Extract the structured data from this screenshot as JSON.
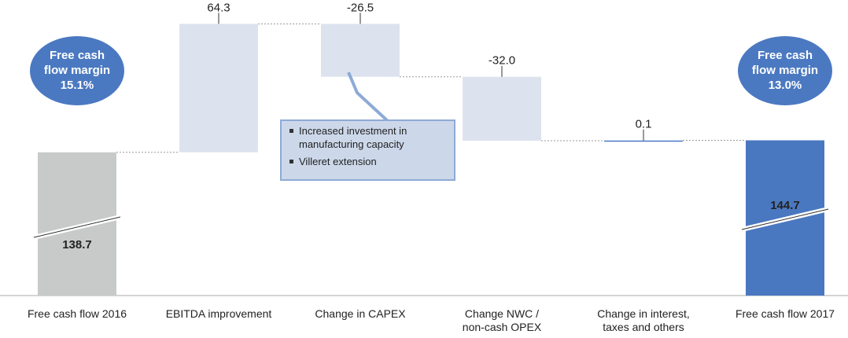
{
  "chart_data": {
    "type": "waterfall",
    "categories": [
      "Free cash flow 2016",
      "EBITDA improvement",
      "Change in CAPEX",
      "Change NWC /\nnon-cash OPEX",
      "Change in interest,\ntaxes and others",
      "Free cash flow 2017"
    ],
    "values": [
      138.7,
      64.3,
      -26.5,
      -32.0,
      0.1,
      144.7
    ],
    "value_labels": [
      "138.7",
      "64.3",
      "-26.5",
      "-32.0",
      "0.1",
      "144.7"
    ],
    "kinds": [
      "total",
      "delta",
      "delta",
      "delta",
      "delta",
      "total"
    ],
    "colors": {
      "start": "#c8cac9",
      "delta": "#dde3ee",
      "end": "#4a78c0"
    },
    "ylim": [
      67,
      211
    ],
    "annotations": [
      {
        "text": "Free cash\nflow margin\n15.1%",
        "category": 0
      },
      {
        "text": "Free cash\nflow margin\n13.0%",
        "category": 5
      }
    ],
    "callout": {
      "category": 2,
      "items": [
        "Increased investment in manufacturing capacity",
        "Villeret extension"
      ]
    }
  }
}
